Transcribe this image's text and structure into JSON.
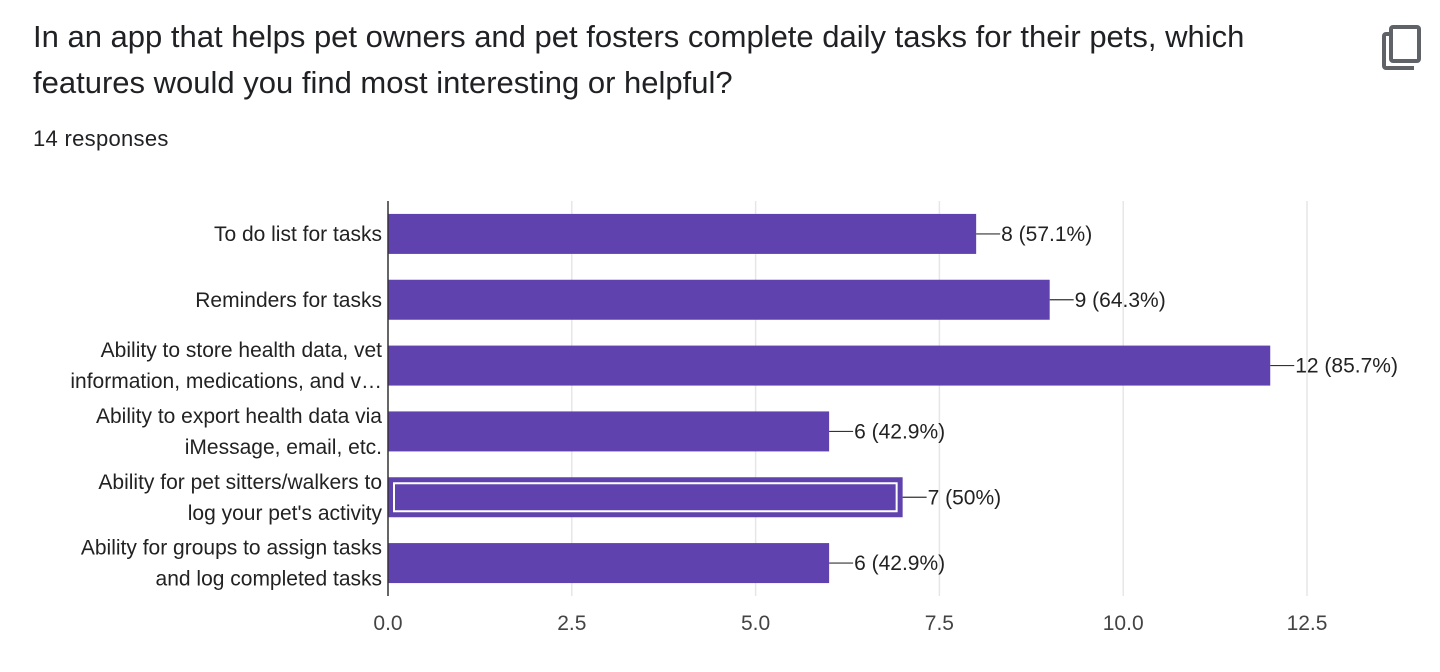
{
  "question": {
    "title": "In an app that helps pet owners and pet fosters complete daily tasks for their pets, which features would you find most interesting or helpful?",
    "responses": "14 responses"
  },
  "icons": {
    "copy": "copy-icon"
  },
  "colors": {
    "bar": "#6042ae",
    "bar_highlight_outline": "#ffffff",
    "grid": "#e6e6e6",
    "axis": "#333333"
  },
  "chart_data": {
    "type": "bar",
    "orientation": "horizontal",
    "categories": [
      [
        "To do list for tasks"
      ],
      [
        "Reminders for tasks"
      ],
      [
        "Ability to store health data, vet",
        "information, medications, and v…"
      ],
      [
        "Ability to export health data via",
        "iMessage, email, etc."
      ],
      [
        "Ability for pet sitters/walkers to",
        "log your pet's activity"
      ],
      [
        "Ability for groups to assign tasks",
        "and log completed tasks"
      ]
    ],
    "values": [
      8,
      9,
      12,
      6,
      7,
      6
    ],
    "value_labels": [
      "8 (57.1%)",
      "9 (64.3%)",
      "12 (85.7%)",
      "6 (42.9%)",
      "7 (50%)",
      "6 (42.9%)"
    ],
    "highlighted_index": 4,
    "xlim": [
      0,
      12.5
    ],
    "xticks": [
      0,
      2.5,
      5,
      7.5,
      10,
      12.5
    ],
    "xtick_labels": [
      "0.0",
      "2.5",
      "5.0",
      "7.5",
      "10.0",
      "12.5"
    ],
    "grid": true,
    "title": "",
    "xlabel": "",
    "ylabel": ""
  }
}
